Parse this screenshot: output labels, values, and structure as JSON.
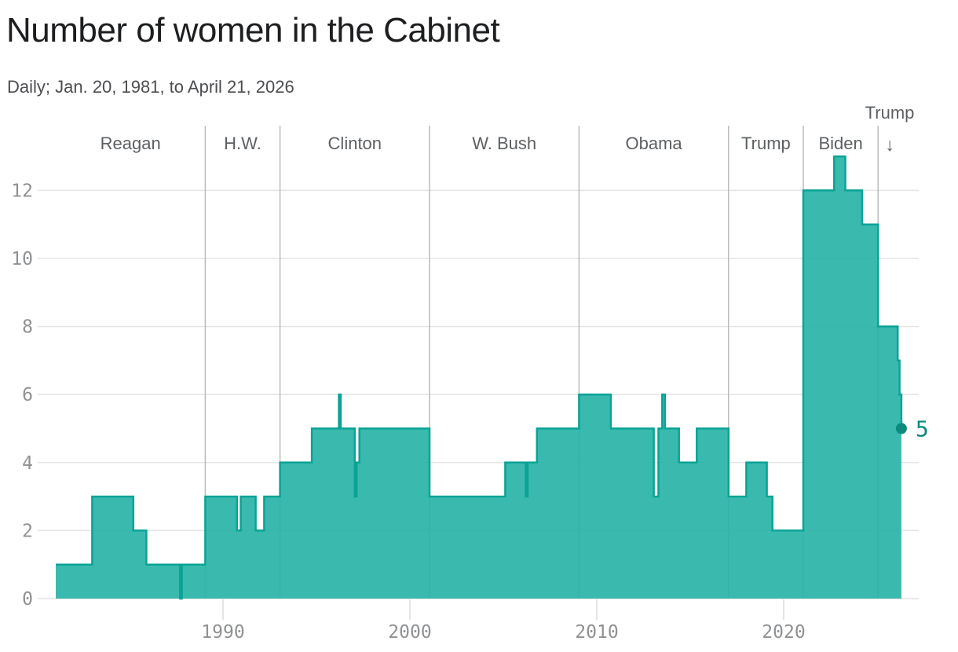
{
  "header": {
    "title": "Number of women in the Cabinet",
    "subtitle": "Daily; Jan. 20, 1981, to April 21, 2026"
  },
  "chart_data": {
    "type": "area",
    "step": true,
    "title": "Number of women in the Cabinet",
    "subtitle": "Daily; Jan. 20, 1981, to April 21, 2026",
    "xlabel": "",
    "ylabel": "",
    "x_start": 1981.05,
    "x_end": 2026.3,
    "ylim": [
      0,
      13.8
    ],
    "grid": "horizontal",
    "legend": "none",
    "y_ticks": [
      0,
      2,
      4,
      6,
      8,
      10,
      12
    ],
    "x_ticks": [
      1990,
      2000,
      2010,
      2020
    ],
    "series": [
      {
        "name": "Number of women in the Cabinet",
        "points": [
          [
            1981.05,
            1
          ],
          [
            1983.0,
            3
          ],
          [
            1985.2,
            2
          ],
          [
            1985.9,
            1
          ],
          [
            1987.7,
            0
          ],
          [
            1987.8,
            1
          ],
          [
            1989.05,
            3
          ],
          [
            1990.75,
            2
          ],
          [
            1990.95,
            3
          ],
          [
            1991.75,
            2
          ],
          [
            1992.2,
            3
          ],
          [
            1993.05,
            4
          ],
          [
            1994.75,
            5
          ],
          [
            1996.2,
            6
          ],
          [
            1996.3,
            5
          ],
          [
            1997.05,
            3
          ],
          [
            1997.15,
            4
          ],
          [
            1997.3,
            5
          ],
          [
            2001.05,
            3
          ],
          [
            2005.1,
            4
          ],
          [
            2006.2,
            3
          ],
          [
            2006.3,
            4
          ],
          [
            2006.8,
            5
          ],
          [
            2009.05,
            6
          ],
          [
            2010.75,
            5
          ],
          [
            2013.05,
            3
          ],
          [
            2013.3,
            5
          ],
          [
            2013.5,
            6
          ],
          [
            2013.65,
            5
          ],
          [
            2014.4,
            4
          ],
          [
            2015.35,
            5
          ],
          [
            2017.05,
            3
          ],
          [
            2018.0,
            4
          ],
          [
            2019.1,
            3
          ],
          [
            2019.4,
            2
          ],
          [
            2021.05,
            12
          ],
          [
            2022.7,
            13
          ],
          [
            2023.3,
            12
          ],
          [
            2024.2,
            11
          ],
          [
            2025.05,
            8
          ],
          [
            2026.1,
            7
          ],
          [
            2026.2,
            6
          ],
          [
            2026.3,
            5
          ]
        ]
      }
    ],
    "end_label": {
      "text": "5",
      "value": 5,
      "year": 2026.3
    },
    "eras": [
      {
        "label": "Reagan",
        "start": 1981.05,
        "end": 1989.05,
        "arrow": false
      },
      {
        "label": "H.W.",
        "start": 1989.05,
        "end": 1993.05,
        "arrow": false
      },
      {
        "label": "Clinton",
        "start": 1993.05,
        "end": 2001.05,
        "arrow": false
      },
      {
        "label": "W. Bush",
        "start": 2001.05,
        "end": 2009.05,
        "arrow": false
      },
      {
        "label": "Obama",
        "start": 2009.05,
        "end": 2017.05,
        "arrow": false
      },
      {
        "label": "Trump",
        "start": 2017.05,
        "end": 2021.05,
        "arrow": false
      },
      {
        "label": "Biden",
        "start": 2021.05,
        "end": 2025.05,
        "arrow": false
      },
      {
        "label": "Trump",
        "start": 2025.05,
        "end": 2026.3,
        "arrow": true
      }
    ],
    "arrow_glyph": "↓",
    "colors": {
      "area_fill": "#25b2a5",
      "area_stroke": "#0aa396",
      "accent": "#0c8a7d",
      "gridline": "#e4e4e4",
      "separator": "#bcbcbc",
      "tick_mark": "#dcdcdc",
      "tick_text": "#8f9193",
      "era_text": "#5d6063",
      "title_text": "#1d1e20",
      "subtitle_text": "#4b4d50"
    }
  }
}
